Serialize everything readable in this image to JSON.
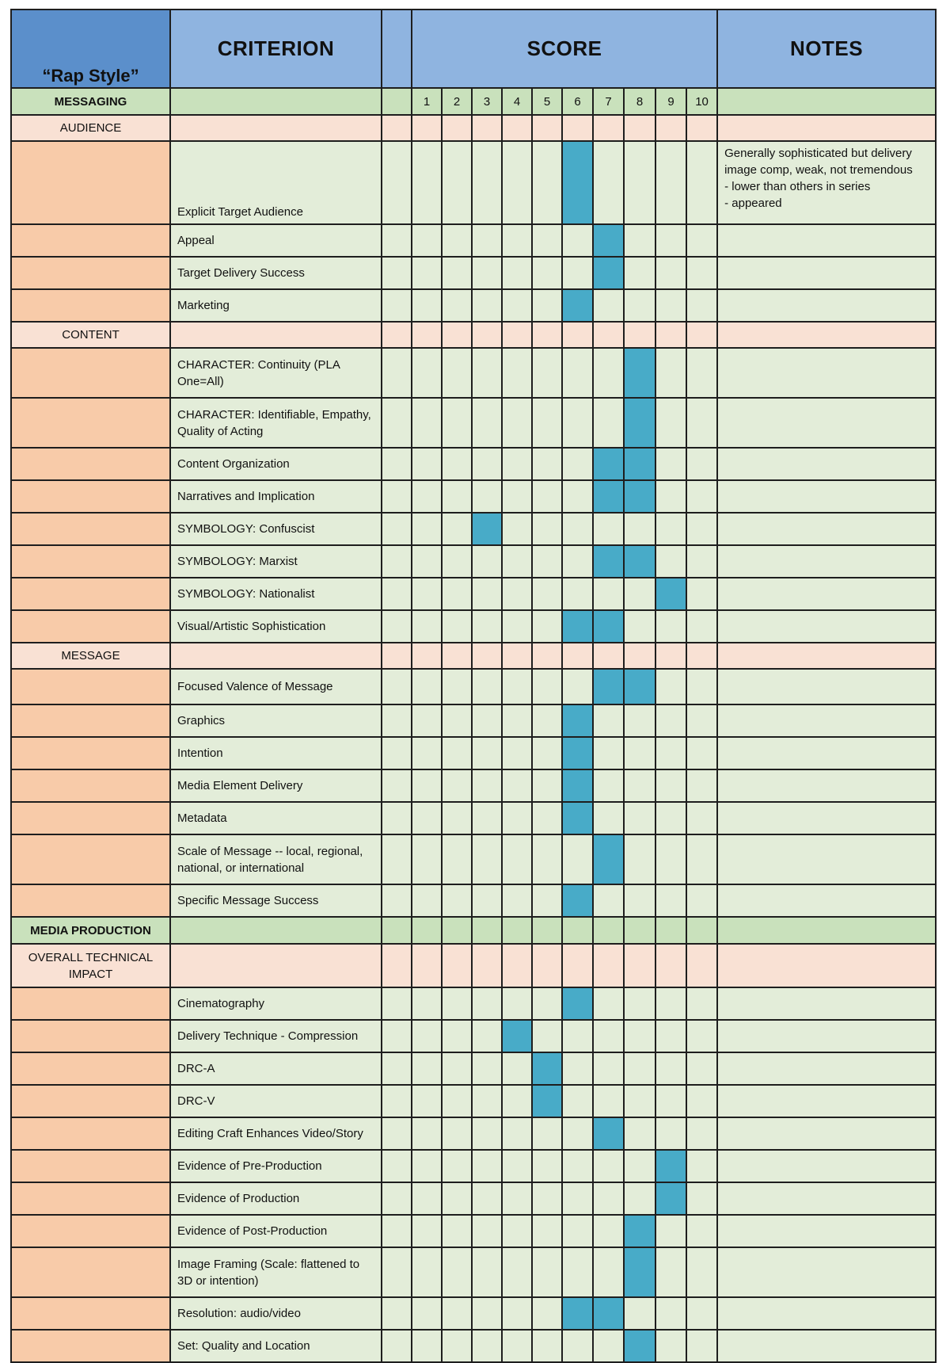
{
  "header": {
    "title": "“Rap Style”",
    "criterion": "CRITERION",
    "score": "SCORE",
    "notes": "NOTES"
  },
  "rows": [
    {
      "type": "section",
      "label": "MESSAGING",
      "numbers": [
        "1",
        "2",
        "3",
        "4",
        "5",
        "6",
        "7",
        "8",
        "9",
        "10"
      ]
    },
    {
      "type": "sub",
      "label": "AUDIENCE"
    },
    {
      "type": "item",
      "label": "Explicit Target Audience",
      "scores": [
        6
      ],
      "notes": [
        "Generally sophisticated but delivery",
        "image comp, weak, not tremendous",
        "- lower than others in series",
        "- appeared"
      ]
    },
    {
      "type": "item",
      "label": "Appeal",
      "scores": [
        7
      ]
    },
    {
      "type": "item",
      "label": "Target Delivery Success",
      "scores": [
        7
      ]
    },
    {
      "type": "item",
      "label": "Marketing",
      "scores": [
        6
      ]
    },
    {
      "type": "sub",
      "label": "CONTENT"
    },
    {
      "type": "item",
      "label": "CHARACTER: Continuity (PLA One=All)",
      "scores": [
        8
      ]
    },
    {
      "type": "item",
      "label": "CHARACTER: Identifiable, Empathy, Quality of Acting",
      "scores": [
        8
      ]
    },
    {
      "type": "item",
      "label": "Content Organization",
      "scores": [
        7,
        8
      ]
    },
    {
      "type": "item",
      "label": "Narratives and Implication",
      "scores": [
        7,
        8
      ]
    },
    {
      "type": "item",
      "label": "SYMBOLOGY: Confuscist",
      "scores": [
        3
      ]
    },
    {
      "type": "item",
      "label": "SYMBOLOGY: Marxist",
      "scores": [
        7,
        8
      ]
    },
    {
      "type": "item",
      "label": "SYMBOLOGY: Nationalist",
      "scores": [
        9
      ]
    },
    {
      "type": "item",
      "label": "Visual/Artistic Sophistication",
      "scores": [
        6,
        7
      ]
    },
    {
      "type": "sub",
      "label": "MESSAGE"
    },
    {
      "type": "item",
      "label": "Focused Valence of Message",
      "scores": [
        7,
        8
      ]
    },
    {
      "type": "item",
      "label": "Graphics",
      "scores": [
        6
      ]
    },
    {
      "type": "item",
      "label": "Intention",
      "scores": [
        6
      ]
    },
    {
      "type": "item",
      "label": "Media Element Delivery",
      "scores": [
        6
      ]
    },
    {
      "type": "item",
      "label": "Metadata",
      "scores": [
        6
      ]
    },
    {
      "type": "item",
      "label": "Scale of Message -- local, regional, national, or international",
      "scores": [
        7
      ]
    },
    {
      "type": "item",
      "label": "Specific Message Success",
      "scores": [
        6
      ]
    },
    {
      "type": "section",
      "label": "MEDIA PRODUCTION"
    },
    {
      "type": "sub",
      "label": "OVERALL TECHNICAL IMPACT"
    },
    {
      "type": "item",
      "label": "Cinematography",
      "scores": [
        6
      ]
    },
    {
      "type": "item",
      "label": "Delivery Technique - Compression",
      "scores": [
        4
      ]
    },
    {
      "type": "item",
      "label": "DRC-A",
      "scores": [
        5
      ]
    },
    {
      "type": "item",
      "label": "DRC-V",
      "scores": [
        5
      ]
    },
    {
      "type": "item",
      "label": "Editing Craft Enhances Video/Story",
      "scores": [
        7
      ]
    },
    {
      "type": "item",
      "label": "Evidence of Pre-Production",
      "scores": [
        9
      ]
    },
    {
      "type": "item",
      "label": "Evidence of Production",
      "scores": [
        9
      ]
    },
    {
      "type": "item",
      "label": "Evidence of Post-Production",
      "scores": [
        8
      ]
    },
    {
      "type": "item",
      "label": "Image Framing (Scale: flattened to 3D or intention)",
      "scores": [
        8
      ]
    },
    {
      "type": "item",
      "label": "Resolution: audio/video",
      "scores": [
        6,
        7
      ]
    },
    {
      "type": "item",
      "label": "Set: Quality and Location",
      "scores": [
        8
      ]
    }
  ],
  "colors": {
    "header": "#8fb4e0",
    "header_title": "#5b8fcb",
    "section": "#c9e1bc",
    "sub": "#f9e1d4",
    "item": "#e3edd9",
    "item_left": "#f8cba9",
    "score_fill": "#48abc8"
  }
}
